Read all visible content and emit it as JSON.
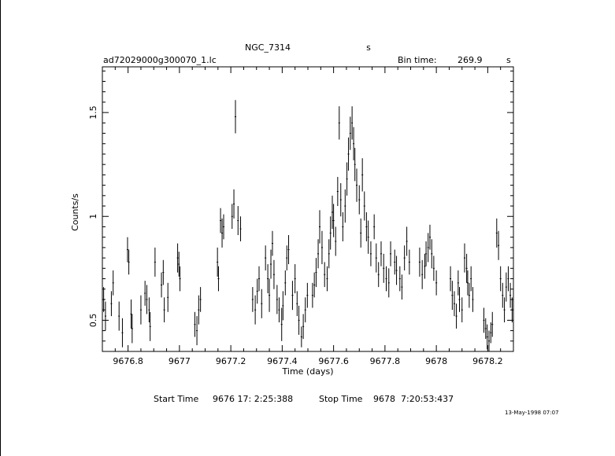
{
  "chart_data": {
    "type": "scatter",
    "title": "NGC_7314",
    "title_suffix": "s",
    "subtitle_left": "ad72029000g300070_1.lc",
    "bin_time_label": "Bin time:",
    "bin_time_value": "269.9",
    "bin_time_unit": "s",
    "xlabel": "Time (days)",
    "ylabel": "Counts/s",
    "xlim": [
      9676.7,
      9678.3
    ],
    "ylim": [
      0.35,
      1.72
    ],
    "x_ticks": [
      "9676.8",
      "9677",
      "9677.2",
      "9677.4",
      "9677.6",
      "9677.8",
      "9678",
      "9678.2"
    ],
    "x_tick_values": [
      9676.8,
      9677.0,
      9677.2,
      9677.4,
      9677.6,
      9677.8,
      9678.0,
      9678.2
    ],
    "y_ticks": [
      "0.5",
      "1",
      "1.5"
    ],
    "y_tick_values": [
      0.5,
      1.0,
      1.5
    ],
    "grid": false,
    "legend": "none",
    "series": [
      {
        "points": [
          [
            9676.705,
            0.6,
            0.06
          ],
          [
            9676.712,
            0.52,
            0.07
          ],
          [
            9676.735,
            0.58,
            0.06
          ],
          [
            9676.742,
            0.68,
            0.06
          ],
          [
            9676.765,
            0.52,
            0.07
          ],
          [
            9676.778,
            0.44,
            0.07
          ],
          [
            9676.798,
            0.84,
            0.06
          ],
          [
            9676.803,
            0.78,
            0.06
          ],
          [
            9676.812,
            0.53,
            0.07
          ],
          [
            9676.816,
            0.46,
            0.07
          ],
          [
            9676.85,
            0.55,
            0.07
          ],
          [
            9676.866,
            0.63,
            0.06
          ],
          [
            9676.873,
            0.6,
            0.07
          ],
          [
            9676.882,
            0.55,
            0.06
          ],
          [
            9676.886,
            0.47,
            0.07
          ],
          [
            9676.905,
            0.78,
            0.07
          ],
          [
            9676.93,
            0.67,
            0.06
          ],
          [
            9676.937,
            0.73,
            0.06
          ],
          [
            9676.941,
            0.55,
            0.06
          ],
          [
            9676.955,
            0.61,
            0.07
          ],
          [
            9676.993,
            0.8,
            0.07
          ],
          [
            9676.998,
            0.77,
            0.06
          ],
          [
            9677.002,
            0.7,
            0.06
          ],
          [
            9677.06,
            0.48,
            0.06
          ],
          [
            9677.068,
            0.45,
            0.07
          ],
          [
            9677.075,
            0.55,
            0.07
          ],
          [
            9677.082,
            0.6,
            0.06
          ],
          [
            9677.148,
            0.78,
            0.07
          ],
          [
            9677.152,
            0.7,
            0.06
          ],
          [
            9677.16,
            0.98,
            0.06
          ],
          [
            9677.166,
            0.92,
            0.07
          ],
          [
            9677.172,
            0.95,
            0.06
          ],
          [
            9677.205,
            1.0,
            0.06
          ],
          [
            9677.212,
            1.06,
            0.07
          ],
          [
            9677.218,
            1.48,
            0.08
          ],
          [
            9677.228,
            0.98,
            0.07
          ],
          [
            9677.238,
            0.94,
            0.06
          ],
          [
            9677.285,
            0.6,
            0.06
          ],
          [
            9677.295,
            0.55,
            0.07
          ],
          [
            9677.303,
            0.64,
            0.06
          ],
          [
            9677.31,
            0.7,
            0.06
          ],
          [
            9677.32,
            0.58,
            0.07
          ],
          [
            9677.335,
            0.8,
            0.06
          ],
          [
            9677.344,
            0.7,
            0.07
          ],
          [
            9677.35,
            0.62,
            0.08
          ],
          [
            9677.356,
            0.77,
            0.07
          ],
          [
            9677.362,
            0.87,
            0.06
          ],
          [
            9677.368,
            0.72,
            0.07
          ],
          [
            9677.38,
            0.6,
            0.07
          ],
          [
            9677.388,
            0.55,
            0.06
          ],
          [
            9677.398,
            0.48,
            0.08
          ],
          [
            9677.403,
            0.57,
            0.07
          ],
          [
            9677.412,
            0.68,
            0.06
          ],
          [
            9677.418,
            0.8,
            0.06
          ],
          [
            9677.425,
            0.84,
            0.07
          ],
          [
            9677.44,
            0.62,
            0.07
          ],
          [
            9677.45,
            0.7,
            0.07
          ],
          [
            9677.458,
            0.58,
            0.06
          ],
          [
            9677.465,
            0.5,
            0.07
          ],
          [
            9677.475,
            0.42,
            0.05
          ],
          [
            9677.482,
            0.47,
            0.06
          ],
          [
            9677.49,
            0.55,
            0.06
          ],
          [
            9677.498,
            0.62,
            0.06
          ],
          [
            9677.518,
            0.62,
            0.06
          ],
          [
            9677.525,
            0.67,
            0.06
          ],
          [
            9677.532,
            0.73,
            0.07
          ],
          [
            9677.54,
            0.82,
            0.07
          ],
          [
            9677.546,
            0.95,
            0.08
          ],
          [
            9677.555,
            0.85,
            0.08
          ],
          [
            9677.565,
            0.72,
            0.06
          ],
          [
            9677.575,
            0.7,
            0.06
          ],
          [
            9677.582,
            0.82,
            0.07
          ],
          [
            9677.588,
            0.92,
            0.08
          ],
          [
            9677.595,
            1.02,
            0.08
          ],
          [
            9677.6,
            0.98,
            0.08
          ],
          [
            9677.608,
            0.88,
            0.07
          ],
          [
            9677.616,
            1.12,
            0.07
          ],
          [
            9677.622,
            1.45,
            0.08
          ],
          [
            9677.628,
            1.08,
            0.08
          ],
          [
            9677.636,
            0.95,
            0.07
          ],
          [
            9677.645,
            1.05,
            0.08
          ],
          [
            9677.652,
            1.18,
            0.08
          ],
          [
            9677.658,
            1.3,
            0.08
          ],
          [
            9677.665,
            1.4,
            0.08
          ],
          [
            9677.672,
            1.45,
            0.08
          ],
          [
            9677.678,
            1.35,
            0.08
          ],
          [
            9677.683,
            1.25,
            0.08
          ],
          [
            9677.69,
            1.15,
            0.08
          ],
          [
            9677.7,
            1.08,
            0.07
          ],
          [
            9677.706,
            0.92,
            0.07
          ],
          [
            9677.712,
            1.2,
            0.08
          ],
          [
            9677.72,
            1.05,
            0.07
          ],
          [
            9677.728,
            0.95,
            0.07
          ],
          [
            9677.735,
            0.9,
            0.08
          ],
          [
            9677.745,
            0.82,
            0.06
          ],
          [
            9677.758,
            0.95,
            0.06
          ],
          [
            9677.766,
            0.8,
            0.07
          ],
          [
            9677.775,
            0.72,
            0.06
          ],
          [
            9677.785,
            0.82,
            0.06
          ],
          [
            9677.795,
            0.75,
            0.07
          ],
          [
            9677.805,
            0.7,
            0.06
          ],
          [
            9677.815,
            0.68,
            0.07
          ],
          [
            9677.822,
            0.82,
            0.06
          ],
          [
            9677.838,
            0.78,
            0.06
          ],
          [
            9677.845,
            0.74,
            0.07
          ],
          [
            9677.858,
            0.7,
            0.06
          ],
          [
            9677.866,
            0.66,
            0.06
          ],
          [
            9677.876,
            0.8,
            0.06
          ],
          [
            9677.885,
            0.88,
            0.07
          ],
          [
            9677.895,
            0.78,
            0.06
          ],
          [
            9677.935,
            0.78,
            0.07
          ],
          [
            9677.945,
            0.72,
            0.07
          ],
          [
            9677.955,
            0.76,
            0.06
          ],
          [
            9677.96,
            0.82,
            0.06
          ],
          [
            9677.968,
            0.85,
            0.07
          ],
          [
            9677.975,
            0.9,
            0.06
          ],
          [
            9677.982,
            0.82,
            0.07
          ],
          [
            9677.99,
            0.75,
            0.06
          ],
          [
            9678.0,
            0.68,
            0.06
          ],
          [
            9678.055,
            0.7,
            0.06
          ],
          [
            9678.062,
            0.62,
            0.07
          ],
          [
            9678.07,
            0.58,
            0.06
          ],
          [
            9678.078,
            0.52,
            0.06
          ],
          [
            9678.085,
            0.68,
            0.06
          ],
          [
            9678.09,
            0.6,
            0.06
          ],
          [
            9678.1,
            0.55,
            0.06
          ],
          [
            9678.11,
            0.8,
            0.07
          ],
          [
            9678.118,
            0.75,
            0.07
          ],
          [
            9678.122,
            0.68,
            0.06
          ],
          [
            9678.128,
            0.62,
            0.06
          ],
          [
            9678.135,
            0.7,
            0.06
          ],
          [
            9678.142,
            0.6,
            0.06
          ],
          [
            9678.185,
            0.5,
            0.06
          ],
          [
            9678.192,
            0.46,
            0.05
          ],
          [
            9678.198,
            0.42,
            0.06
          ],
          [
            9678.205,
            0.4,
            0.05
          ],
          [
            9678.212,
            0.44,
            0.05
          ],
          [
            9678.218,
            0.48,
            0.06
          ],
          [
            9678.235,
            0.92,
            0.07
          ],
          [
            9678.242,
            0.86,
            0.07
          ],
          [
            9678.25,
            0.7,
            0.06
          ],
          [
            9678.258,
            0.62,
            0.06
          ],
          [
            9678.265,
            0.55,
            0.06
          ],
          [
            9678.272,
            0.66,
            0.07
          ],
          [
            9678.28,
            0.7,
            0.06
          ],
          [
            9678.288,
            0.62,
            0.06
          ],
          [
            9678.295,
            0.55,
            0.06
          ]
        ]
      }
    ]
  },
  "footer": {
    "start_label": "Start Time",
    "start_value": "9676 17: 2:25:388",
    "stop_label": "Stop Time",
    "stop_value": "9678  7:20:53:437",
    "stamp": "13-May-1998 07:07"
  }
}
